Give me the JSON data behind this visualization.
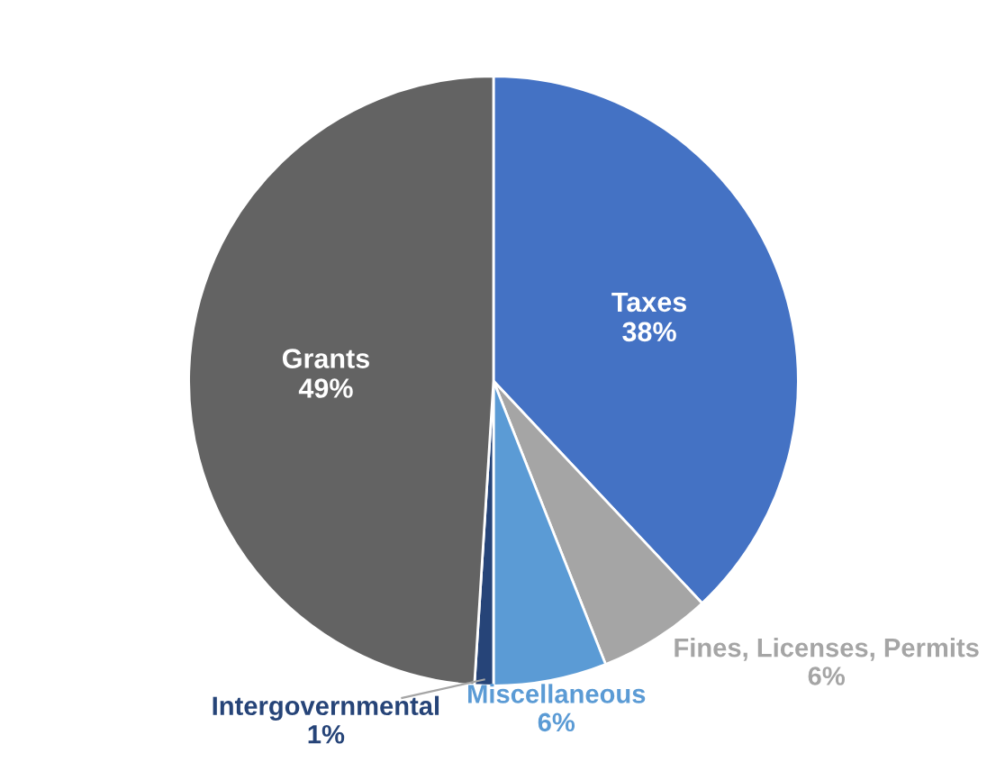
{
  "chart_data": {
    "type": "pie",
    "categories": [
      "Taxes",
      "Fines, Licenses, Permits",
      "Miscellaneous",
      "Intergovernmental",
      "Grants"
    ],
    "values": [
      38,
      6,
      6,
      1,
      49
    ],
    "colors": [
      "#4472c4",
      "#a5a5a5",
      "#5b9bd5",
      "#264478",
      "#636363"
    ],
    "value_labels": [
      "38%",
      "6%",
      "6%",
      "1%",
      "49%"
    ]
  }
}
